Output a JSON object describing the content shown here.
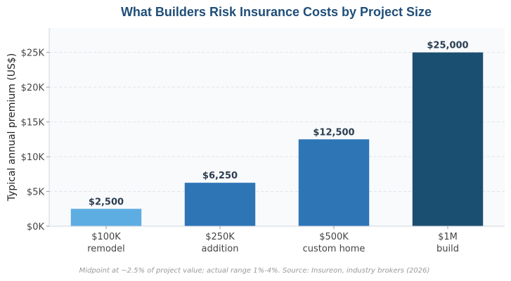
{
  "chart_data": {
    "type": "bar",
    "title": "What Builders Risk Insurance Costs by Project Size",
    "xlabel": "",
    "ylabel": "Typical annual premium (US$)",
    "categories": [
      {
        "line1": "$100K",
        "line2": "remodel"
      },
      {
        "line1": "$250K",
        "line2": "addition"
      },
      {
        "line1": "$500K",
        "line2": "custom home"
      },
      {
        "line1": "$1M",
        "line2": "build"
      }
    ],
    "values": [
      2500,
      6250,
      12500,
      25000
    ],
    "value_labels": [
      "$2,500",
      "$6,250",
      "$12,500",
      "$25,000"
    ],
    "bar_colors": [
      "#5dade2",
      "#2e75b6",
      "#2e75b6",
      "#1b4f72"
    ],
    "ylim": [
      0,
      28500
    ],
    "yticks": [
      0,
      5000,
      10000,
      15000,
      20000,
      25000
    ],
    "ytick_labels": [
      "$0K",
      "$5K",
      "$10K",
      "$15K",
      "$20K",
      "$25K"
    ],
    "grid": true,
    "footnote": "Midpoint at ~2.5% of project value; actual range 1%-4%. Source: Insureon, industry brokers (2026)"
  },
  "colors": {
    "title": "#1f4e79",
    "plot_bg": "#f8fafc",
    "grid": "#dfe5ec",
    "tick_text": "#444444",
    "label_text": "#2c3e50",
    "note_text": "#999999"
  }
}
